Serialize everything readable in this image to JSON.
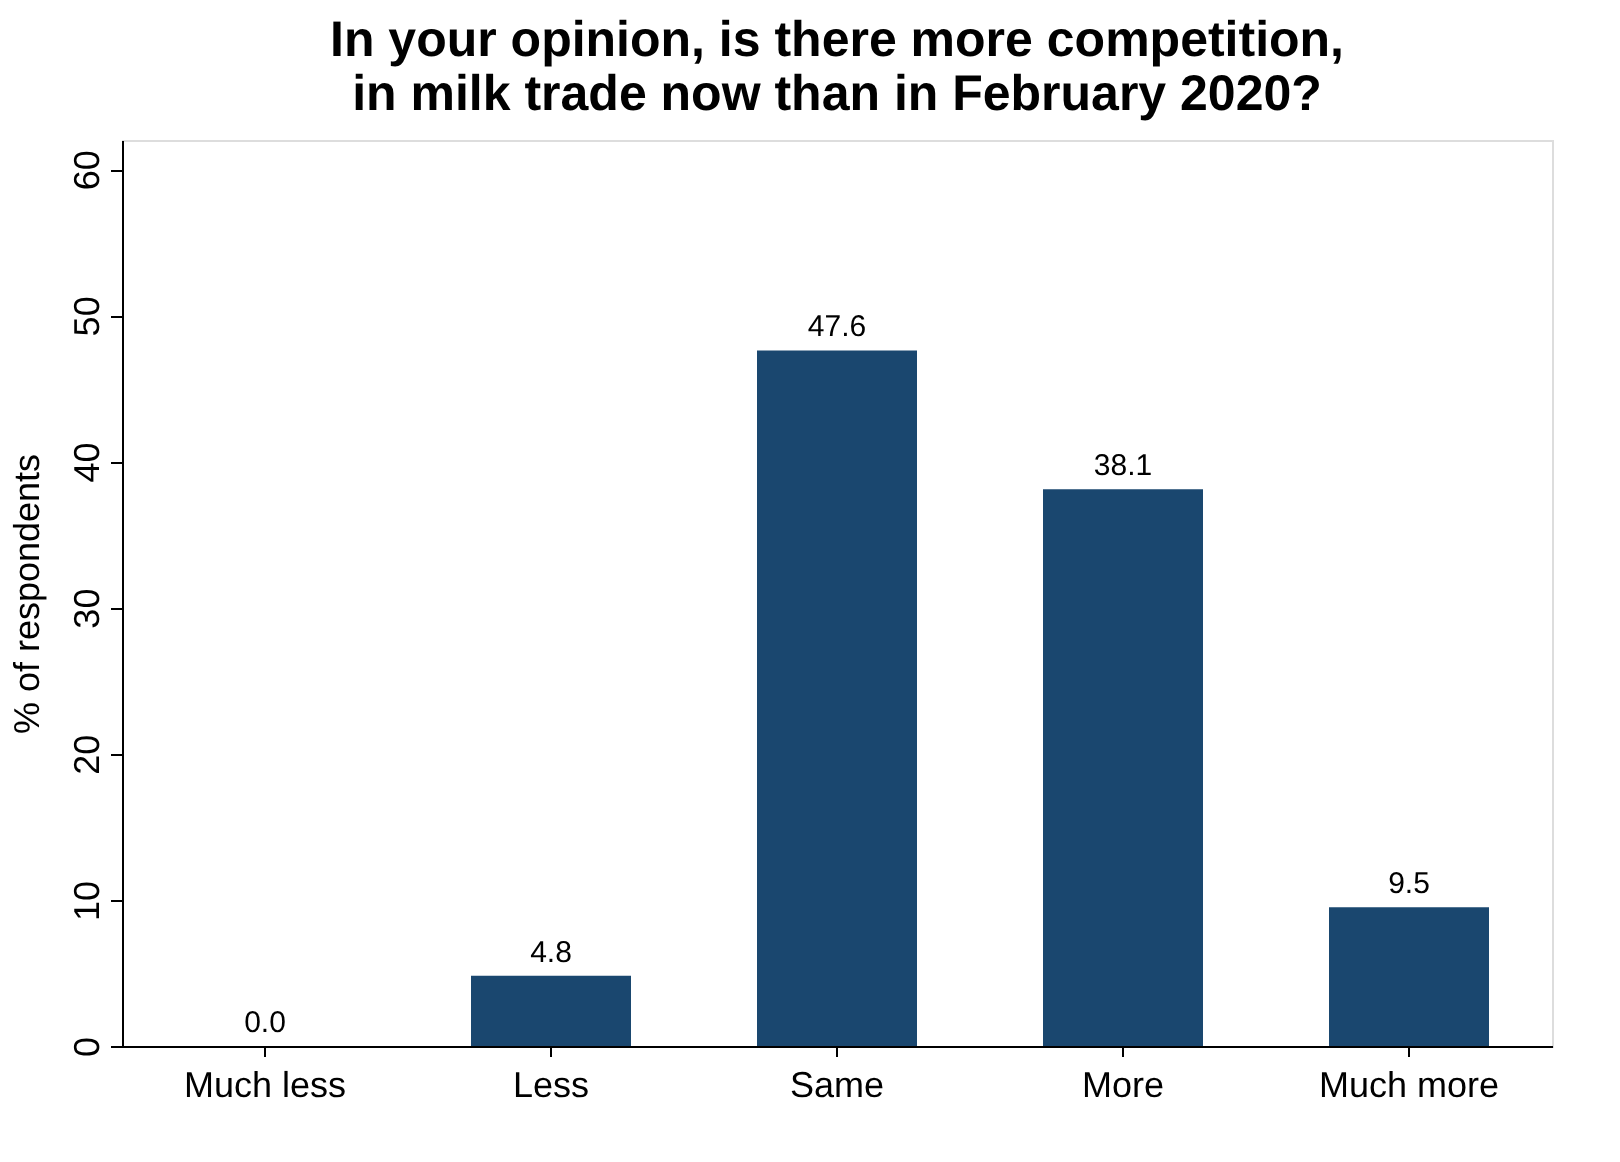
{
  "chart_data": {
    "type": "bar",
    "title": [
      "In your opinion, is there more competition,",
      "in milk trade now than in February 2020?"
    ],
    "ylabel": "% of respondents",
    "categories": [
      "Much less",
      "Less",
      "Same",
      "More",
      "Much more"
    ],
    "values": [
      0.0,
      4.8,
      47.6,
      38.1,
      9.5
    ],
    "color": "#1a476f",
    "value_labels": [
      "0.0",
      "4.8",
      "47.6",
      "38.1",
      "9.5"
    ],
    "ylim": [
      0,
      62
    ],
    "yticks": [
      0,
      10,
      20,
      30,
      40,
      50,
      60
    ],
    "grid": false
  }
}
